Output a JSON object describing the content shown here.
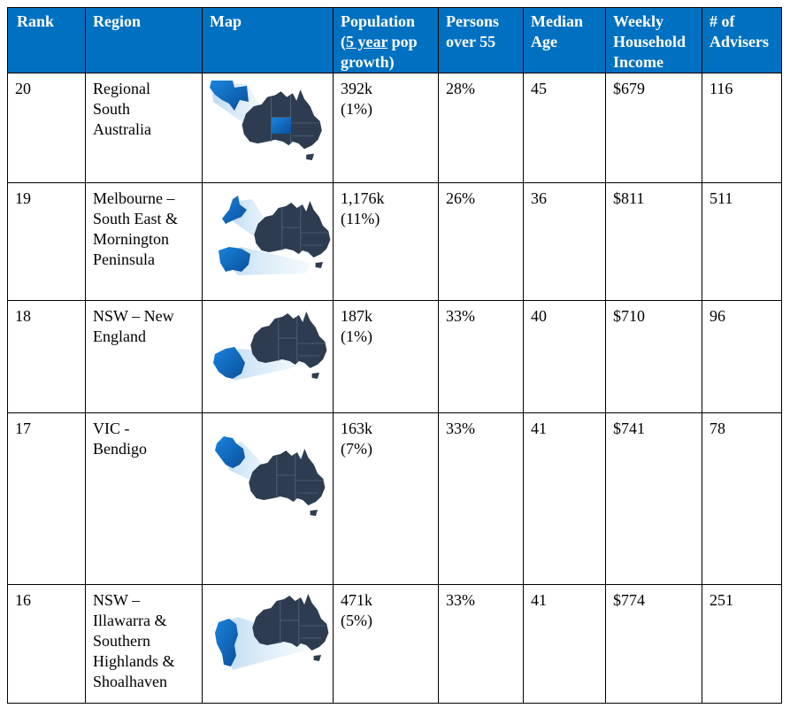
{
  "headers": {
    "rank": "Rank",
    "region": "Region",
    "map": "Map",
    "population_label": "Population",
    "population_growth_open": "(",
    "population_growth_underlined": "5 year",
    "population_growth_rest": " pop growth)",
    "persons_over_55": "Persons over 55",
    "median_age": "Median Age",
    "weekly_income": "Weekly Household Income",
    "advisers": "# of Advisers"
  },
  "rows": [
    {
      "rank": "20",
      "region": [
        "Regional",
        "South",
        "Australia"
      ],
      "population": "392k",
      "growth": "(1%)",
      "over55": "28%",
      "median_age": "45",
      "income": "$679",
      "advisers": "116"
    },
    {
      "rank": "19",
      "region": [
        "Melbourne –",
        "South East &",
        "Mornington",
        "Peninsula"
      ],
      "population": "1,176k",
      "growth": "(11%)",
      "over55": "26%",
      "median_age": "36",
      "income": "$811",
      "advisers": "511"
    },
    {
      "rank": "18",
      "region": [
        "NSW – New",
        "England"
      ],
      "population": "187k",
      "growth": "(1%)",
      "over55": "33%",
      "median_age": "40",
      "income": "$710",
      "advisers": "96"
    },
    {
      "rank": "17",
      "region": [
        "VIC -",
        "Bendigo"
      ],
      "population": "163k",
      "growth": "(7%)",
      "over55": "33%",
      "median_age": "41",
      "income": "$741",
      "advisers": "78"
    },
    {
      "rank": "16",
      "region": [
        "NSW –",
        "Illawarra &",
        "Southern",
        "Highlands &",
        "Shoalhaven"
      ],
      "population": "471k",
      "growth": "(5%)",
      "over55": "33%",
      "median_age": "41",
      "income": "$774",
      "advisers": "251"
    }
  ],
  "colors": {
    "header_bg": "#0070c0",
    "map_dark": "#2d3c50",
    "map_highlight": "#0a6fc8"
  },
  "icons": {
    "map": "australia-map-icon"
  }
}
